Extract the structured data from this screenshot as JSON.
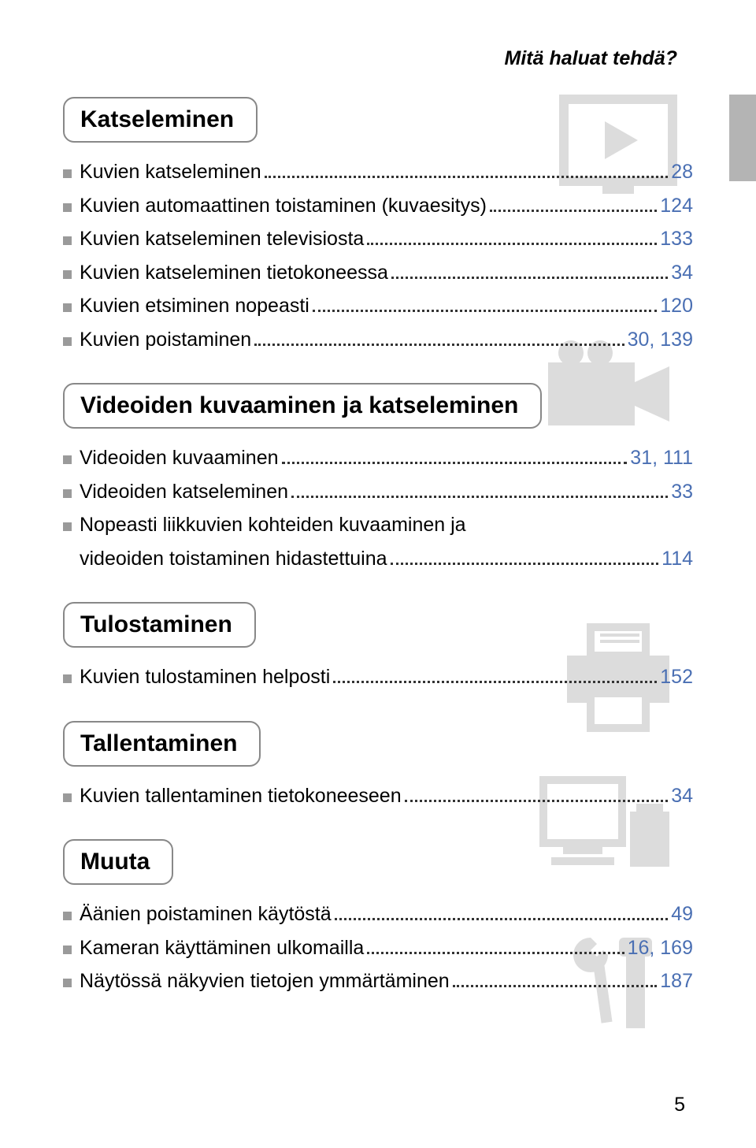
{
  "header": {
    "title": "Mitä haluat tehdä?"
  },
  "colors": {
    "bullet": "#9a9a9a",
    "link_blue": "#4a6fb3",
    "bg_icon": "#dcdcdc",
    "tab_gray": "#b4b4b4"
  },
  "sections": [
    {
      "heading": "Katseleminen",
      "icon": "play",
      "items": [
        {
          "label": "Kuvien katseleminen",
          "page": "28",
          "colored": true
        },
        {
          "label": "Kuvien automaattinen toistaminen (kuvaesitys)",
          "page": "124",
          "colored": true
        },
        {
          "label": "Kuvien katseleminen televisiosta",
          "page": "133",
          "colored": true
        },
        {
          "label": "Kuvien katseleminen tietokoneessa",
          "page": "34",
          "colored": true
        },
        {
          "label": "Kuvien etsiminen nopeasti",
          "page": "120",
          "colored": true
        },
        {
          "label": "Kuvien poistaminen",
          "page": "30, 139",
          "colored": true
        }
      ]
    },
    {
      "heading": "Videoiden kuvaaminen ja katseleminen",
      "icon": "camera",
      "items": [
        {
          "label": "Videoiden kuvaaminen",
          "page": "31, 111",
          "colored": true
        },
        {
          "label": "Videoiden katseleminen",
          "page": "33",
          "colored": true
        },
        {
          "label": "Nopeasti liikkuvien kohteiden kuvaaminen ja",
          "label2": "videoiden toistaminen hidastettuina",
          "page": "114",
          "colored": true,
          "multiline": true
        }
      ]
    },
    {
      "heading": "Tulostaminen",
      "icon": "print",
      "items": [
        {
          "label": "Kuvien tulostaminen helposti",
          "page": "152",
          "colored": true
        }
      ]
    },
    {
      "heading": "Tallentaminen",
      "icon": "save",
      "items": [
        {
          "label": "Kuvien tallentaminen tietokoneeseen",
          "page": "34",
          "colored": true
        }
      ]
    },
    {
      "heading": "Muuta",
      "icon": "tools",
      "items": [
        {
          "label": "Äänien poistaminen käytöstä",
          "page": "49",
          "colored": true
        },
        {
          "label": "Kameran käyttäminen ulkomailla",
          "page": "16, 169",
          "colored": true
        },
        {
          "label": "Näytössä näkyvien tietojen ymmärtäminen",
          "page": "187",
          "colored": true
        }
      ]
    }
  ],
  "page_number": "5"
}
